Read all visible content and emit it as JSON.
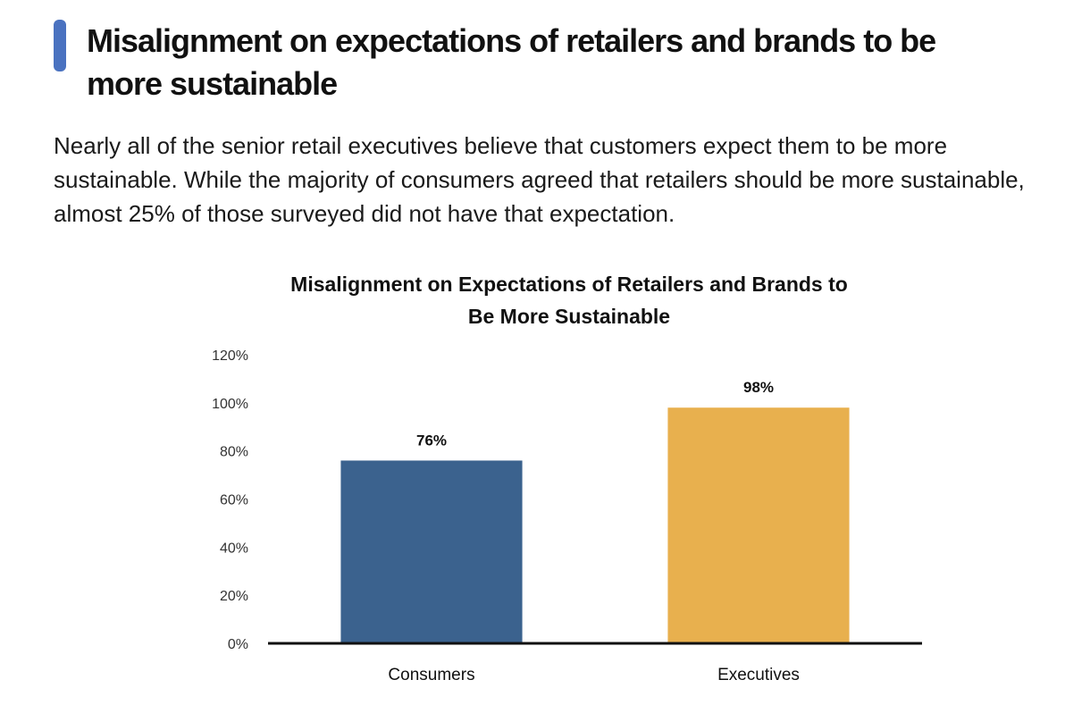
{
  "header": {
    "title": "Misalignment on expectations of retailers and brands to be more sustainable",
    "accent_color": "#4a72c0"
  },
  "intro_text": "Nearly all of the senior retail executives believe that customers expect them to be more sustainable.  While the majority of consumers agreed that retailers should be more sustainable, almost 25% of those surveyed did not have that expectation.",
  "chart_data": {
    "type": "bar",
    "title": "Misalignment on Expectations of Retailers and Brands to Be More Sustainable",
    "title_lines": [
      "Misalignment on Expectations of Retailers and Brands to",
      "Be More Sustainable"
    ],
    "categories": [
      "Consumers",
      "Executives"
    ],
    "values": [
      76,
      98
    ],
    "value_labels": [
      "76%",
      "98%"
    ],
    "bar_colors": [
      "#3b628e",
      "#e8b04e"
    ],
    "ylim": [
      0,
      120
    ],
    "yticks": [
      0,
      20,
      40,
      60,
      80,
      100,
      120
    ],
    "ytick_labels": [
      "0%",
      "20%",
      "40%",
      "60%",
      "80%",
      "100%",
      "120%"
    ],
    "xlabel": "",
    "ylabel": "",
    "grid": false,
    "legend": "none"
  }
}
